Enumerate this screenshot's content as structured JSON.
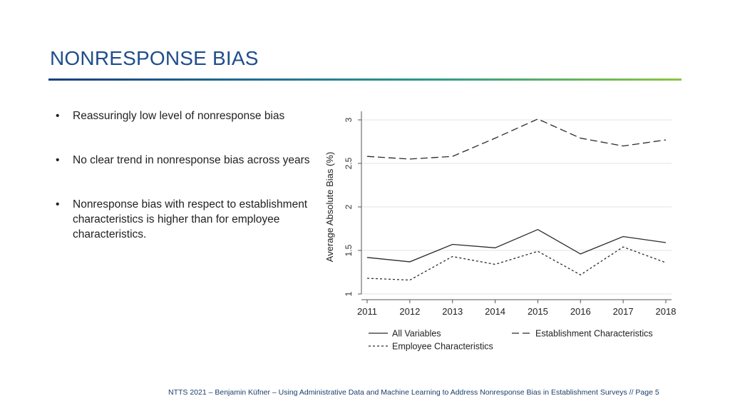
{
  "slide": {
    "title": "NONRESPONSE BIAS",
    "bullets": [
      "Reassuringly low level of nonresponse bias",
      "No clear trend in nonresponse bias across years",
      "Nonresponse bias with respect to establishment characteristics is higher than for employee characteristics."
    ],
    "footer": "NTTS 2021 – Benjamin Küfner – Using Administrative Data and Machine Learning to Address Nonresponse Bias in Establishment Surveys  //  Page  5"
  },
  "chart_data": {
    "type": "line",
    "title": "",
    "xlabel": "",
    "ylabel": "Average Absolute Bias (%)",
    "x": [
      2011,
      2012,
      2013,
      2014,
      2015,
      2016,
      2017,
      2018
    ],
    "ylim": [
      1,
      3
    ],
    "yticks": [
      "1",
      "1.5",
      "2",
      "2.5",
      "3"
    ],
    "grid": true,
    "legend": "bottom",
    "series": [
      {
        "name": "All Variables",
        "style": "solid",
        "values": [
          1.42,
          1.37,
          1.57,
          1.53,
          1.74,
          1.46,
          1.66,
          1.59
        ]
      },
      {
        "name": "Establishment Characteristics",
        "style": "dashed",
        "values": [
          2.58,
          2.55,
          2.58,
          2.79,
          3.01,
          2.79,
          2.7,
          2.77
        ]
      },
      {
        "name": "Employee Characteristics",
        "style": "dotted",
        "values": [
          1.18,
          1.16,
          1.43,
          1.34,
          1.49,
          1.22,
          1.54,
          1.36
        ]
      }
    ],
    "colors": {
      "line": "#2b2b2b",
      "grid": "#e3e3e3",
      "axis": "#555555"
    }
  }
}
